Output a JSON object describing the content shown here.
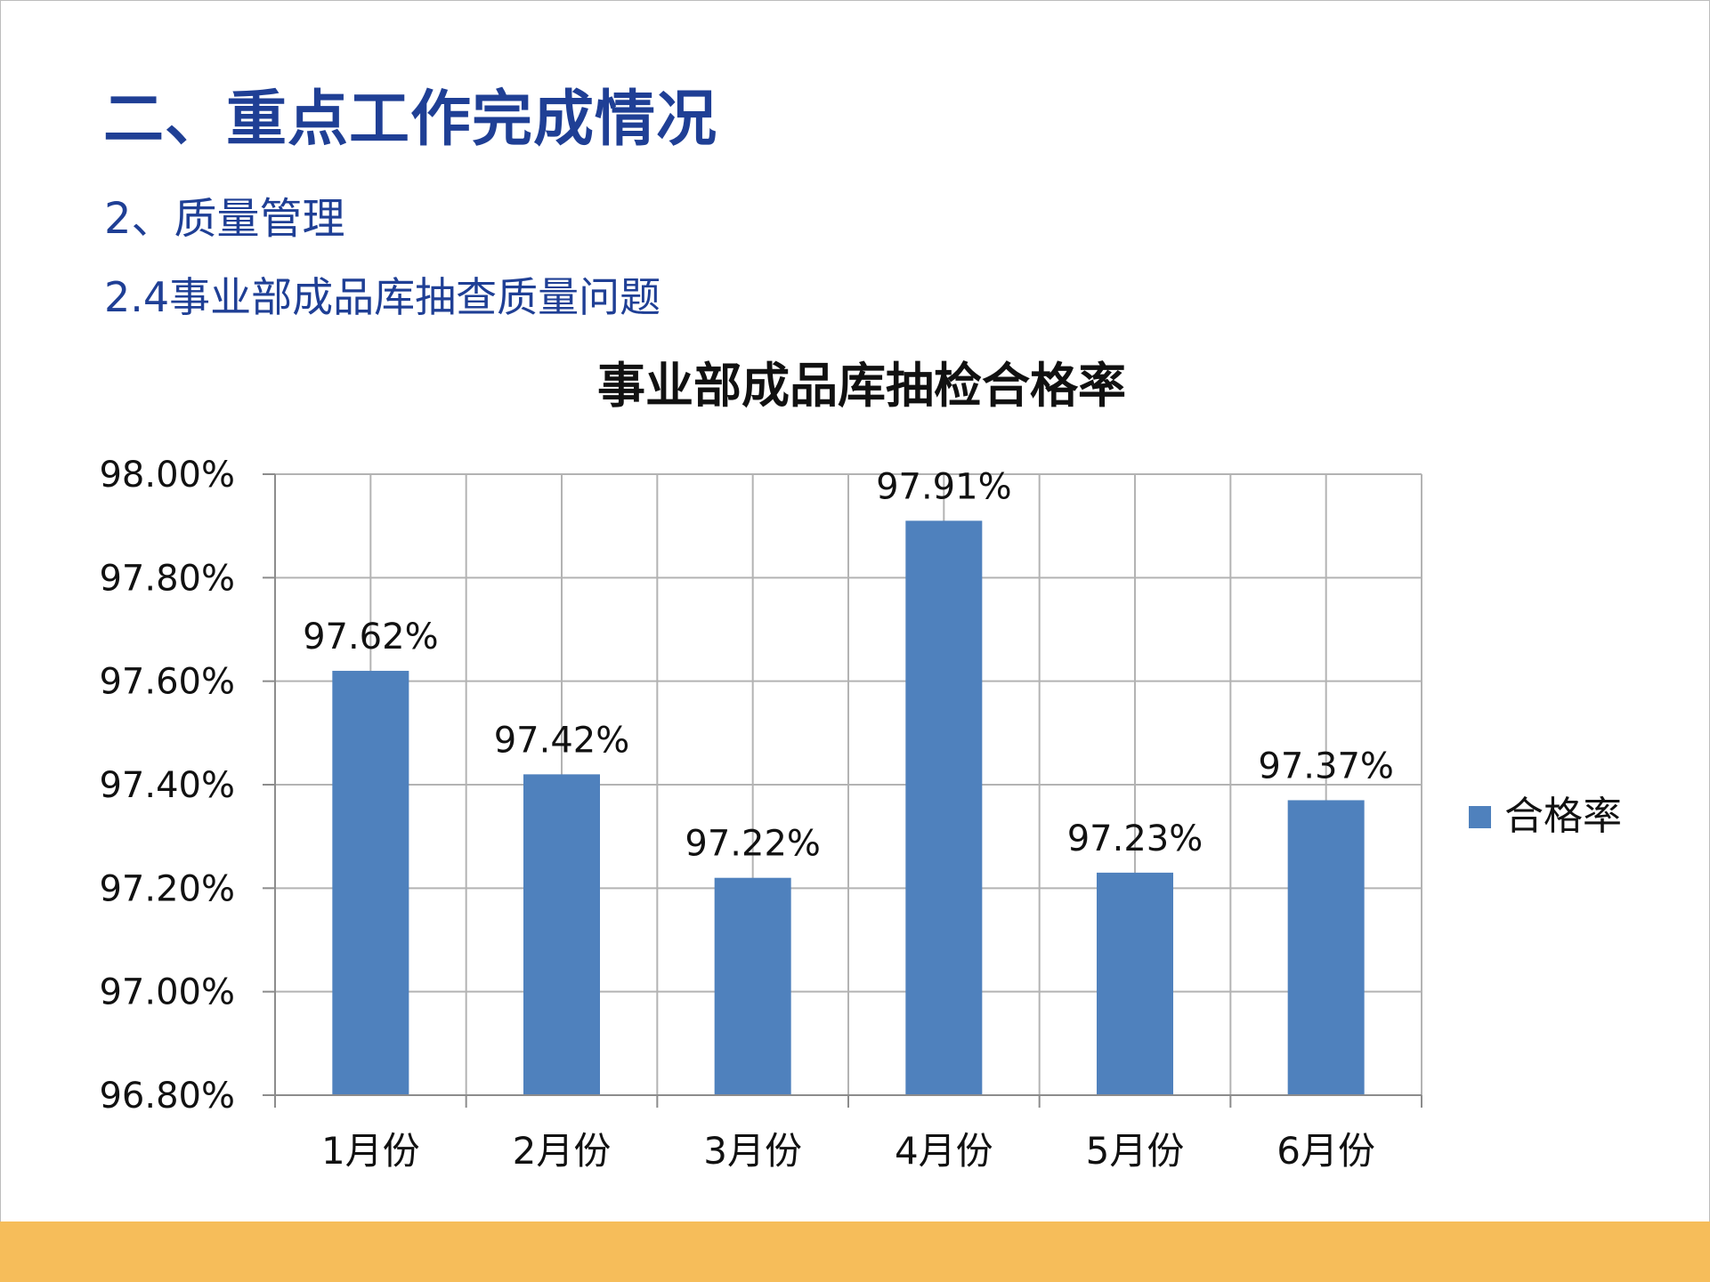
{
  "slide": {
    "title": "二、重点工作完成情况",
    "section": "2、质量管理",
    "subsection": "2.4事业部成品库抽查质量问题"
  },
  "colors": {
    "heading": "#1f3f95",
    "bar": "#4f81bd",
    "band": "#f6bd5a",
    "grid": "#b3b3b3"
  },
  "chart_data": {
    "type": "bar",
    "title": "事业部成品库抽检合格率",
    "categories": [
      "1月份",
      "2月份",
      "3月份",
      "4月份",
      "5月份",
      "6月份"
    ],
    "series": [
      {
        "name": "合格率",
        "values": [
          97.62,
          97.42,
          97.22,
          97.91,
          97.23,
          97.37
        ],
        "labels": [
          "97.62%",
          "97.42%",
          "97.22%",
          "97.91%",
          "97.23%",
          "97.37%"
        ]
      }
    ],
    "ylim": [
      96.8,
      98.0
    ],
    "yticks": [
      "96.80%",
      "97.00%",
      "97.20%",
      "97.40%",
      "97.60%",
      "97.80%",
      "98.00%"
    ],
    "xlabel": "",
    "ylabel": "",
    "grid": true,
    "legend": "right"
  }
}
